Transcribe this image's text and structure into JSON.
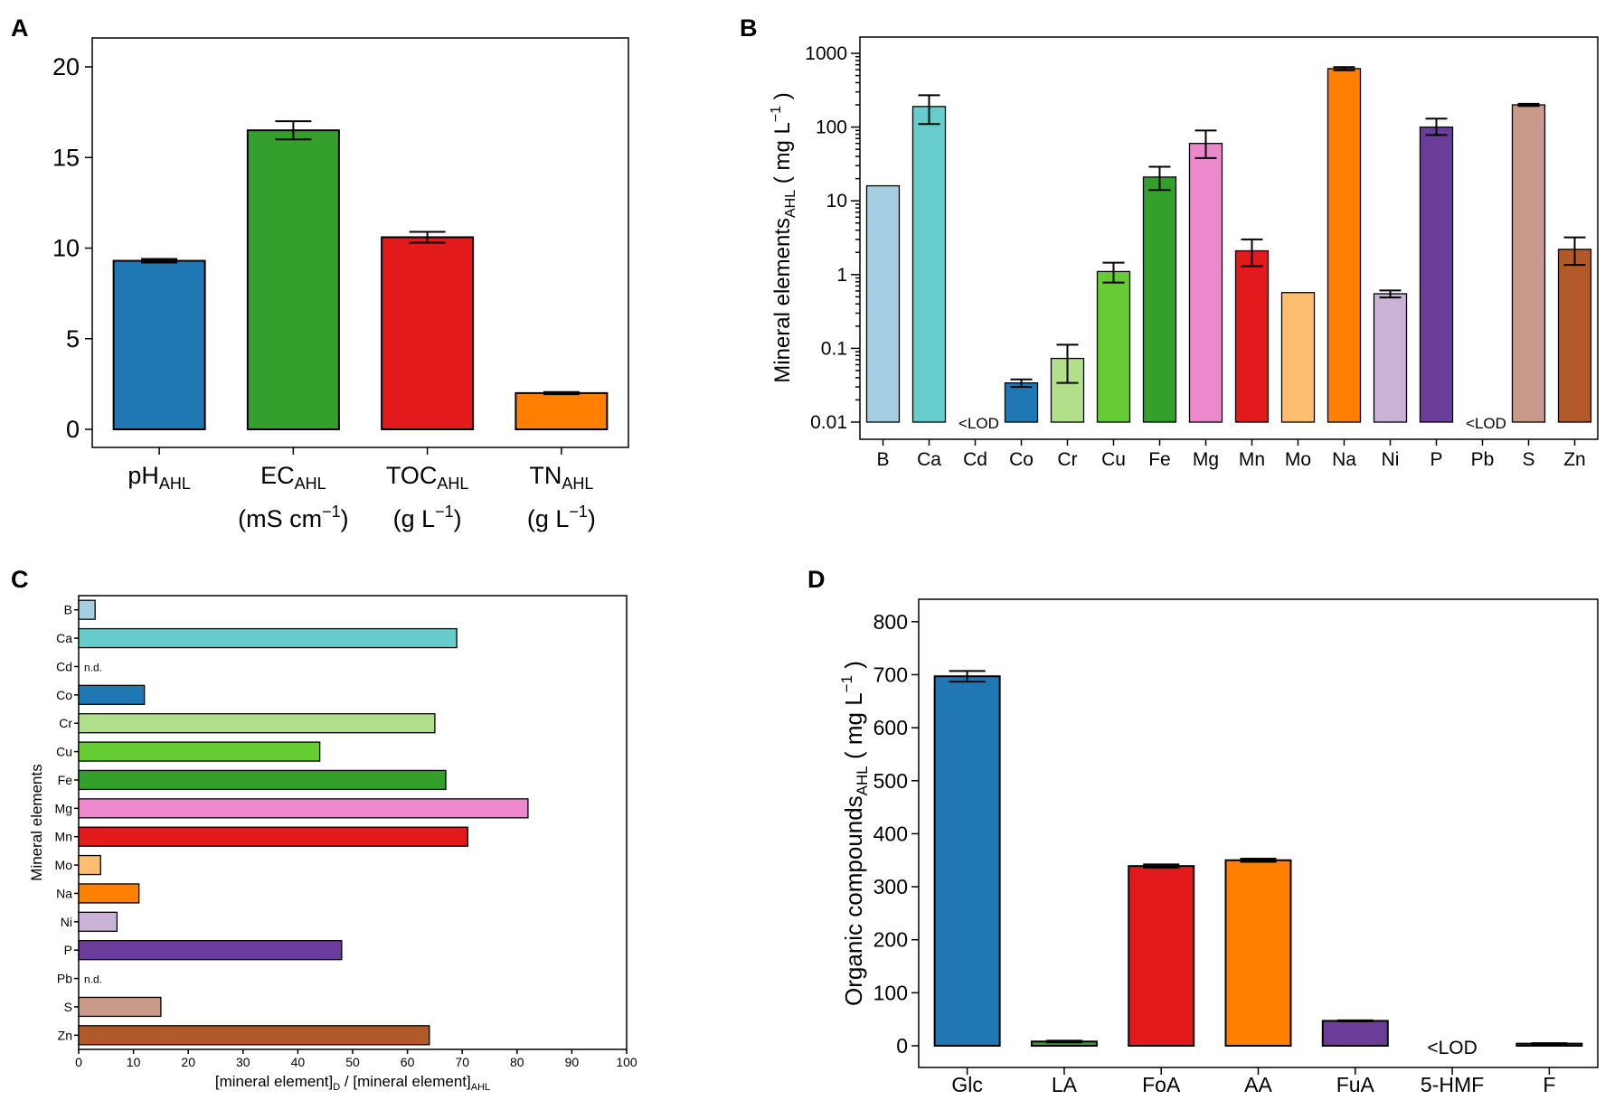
{
  "colors": {
    "blue": "#1f78b4",
    "green": "#33a02c",
    "red": "#e31a1c",
    "orange": "#ff7f00",
    "light_blue": "#a6cee3",
    "teal": "#66cdcc",
    "light_green": "#b2df8a",
    "lime": "#66cc33",
    "pink": "#ee88cc",
    "light_orange": "#fdbf6f",
    "lavender": "#cab2d6",
    "purple": "#6a3d9a",
    "tan": "#c9998a",
    "brown": "#b15928"
  },
  "panels": {
    "a": {
      "letter": "A"
    },
    "b": {
      "letter": "B",
      "ylabel_main": "Mineral  elements",
      "ylabel_sub": "AHL",
      "ylabel_unit": "( mg L",
      "ylabel_exp": "−1",
      "ylabel_close": ")"
    },
    "c": {
      "letter": "C"
    },
    "d": {
      "letter": "D",
      "ylabel_main": "Organic  compounds",
      "ylabel_sub": "AHL",
      "ylabel_unit": "( mg L",
      "ylabel_exp": "−1",
      "ylabel_close": ")"
    }
  },
  "chart_data": [
    {
      "id": "A",
      "type": "bar",
      "title": "",
      "categories": [
        {
          "main": "pH",
          "sub": "AHL",
          "unit": "",
          "exp": "",
          "close": ""
        },
        {
          "main": "EC",
          "sub": "AHL",
          "unit": "(mS cm",
          "exp": "−1",
          "close": ")"
        },
        {
          "main": "TOC",
          "sub": "AHL",
          "unit": "(g L",
          "exp": "−1",
          "close": ")"
        },
        {
          "main": "TN",
          "sub": "AHL",
          "unit": "(g L",
          "exp": "−1",
          "close": ")"
        }
      ],
      "values": [
        9.3,
        16.5,
        10.6,
        2.0
      ],
      "errors": [
        0.1,
        0.5,
        0.3,
        0.06
      ],
      "colors": [
        "#1f78b4",
        "#33a02c",
        "#e31a1c",
        "#ff7f00"
      ],
      "ylim": [
        0,
        21
      ],
      "yticks": [
        0,
        5,
        10,
        15,
        20
      ],
      "xlabel": "",
      "ylabel": ""
    },
    {
      "id": "B",
      "type": "bar",
      "yscale": "log",
      "categories": [
        "B",
        "Ca",
        "Cd",
        "Co",
        "Cr",
        "Cu",
        "Fe",
        "Mg",
        "Mn",
        "Mo",
        "Na",
        "Ni",
        "P",
        "Pb",
        "S",
        "Zn"
      ],
      "values": [
        16,
        190,
        null,
        0.034,
        0.073,
        1.1,
        21,
        60,
        2.1,
        0.57,
        620,
        0.55,
        100,
        null,
        200,
        2.2
      ],
      "err_low": [
        null,
        110,
        null,
        0.03,
        0.034,
        0.78,
        14,
        38,
        1.3,
        null,
        590,
        0.49,
        78,
        null,
        193,
        1.35
      ],
      "err_high": [
        null,
        270,
        null,
        0.038,
        0.112,
        1.45,
        29,
        90,
        3.0,
        null,
        650,
        0.61,
        130,
        null,
        207,
        3.2
      ],
      "labels": [
        null,
        null,
        "<LOD",
        null,
        null,
        null,
        null,
        null,
        null,
        null,
        null,
        null,
        null,
        "<LOD",
        null,
        null
      ],
      "colors": [
        "#a6cee3",
        "#66cdcc",
        "#ffffff",
        "#1f78b4",
        "#b2df8a",
        "#66cc33",
        "#33a02c",
        "#ee88cc",
        "#e31a1c",
        "#fdbf6f",
        "#ff7f00",
        "#cab2d6",
        "#6a3d9a",
        "#ffffff",
        "#c9998a",
        "#b15928"
      ],
      "ylim": [
        0.01,
        1000
      ],
      "ytick_values": [
        0.01,
        0.1,
        1,
        10,
        100,
        1000
      ],
      "ytick_labels": [
        "0.01",
        "0.1",
        "1",
        "10",
        "100",
        "1000"
      ],
      "xlabel": "",
      "ylabel": "Mineral elementsAHL ( mg L−1 )"
    },
    {
      "id": "C",
      "type": "bar",
      "orientation": "horizontal",
      "categories": [
        "B",
        "Ca",
        "Cd",
        "Co",
        "Cr",
        "Cu",
        "Fe",
        "Mg",
        "Mn",
        "Mo",
        "Na",
        "Ni",
        "P",
        "Pb",
        "S",
        "Zn"
      ],
      "values": [
        3,
        69,
        null,
        12,
        65,
        44,
        67,
        82,
        71,
        4,
        11,
        7,
        48,
        null,
        15,
        64
      ],
      "labels": [
        null,
        null,
        "n.d.",
        null,
        null,
        null,
        null,
        null,
        null,
        null,
        null,
        null,
        null,
        "n.d.",
        null,
        null
      ],
      "colors": [
        "#a6cee3",
        "#66cdcc",
        "#ffffff",
        "#1f78b4",
        "#b2df8a",
        "#66cc33",
        "#33a02c",
        "#ee88cc",
        "#e31a1c",
        "#fdbf6f",
        "#ff7f00",
        "#cab2d6",
        "#6a3d9a",
        "#ffffff",
        "#c9998a",
        "#b15928"
      ],
      "xlim": [
        0,
        100
      ],
      "xticks": [
        0,
        10,
        20,
        30,
        40,
        50,
        60,
        70,
        80,
        90,
        100
      ],
      "xlabel_main": "[mineral element]",
      "xlabel_sub1": "D",
      "xlabel_mid": " / [mineral element]",
      "xlabel_sub2": "AHL",
      "ylabel": "Mineral elements"
    },
    {
      "id": "D",
      "type": "bar",
      "categories": [
        "Glc",
        "LA",
        "FoA",
        "AA",
        "FuA",
        "5-HMF",
        "F"
      ],
      "values": [
        697,
        8,
        339,
        350,
        47,
        null,
        4
      ],
      "errors": [
        10,
        1.5,
        3,
        3,
        1,
        null,
        1
      ],
      "labels": [
        null,
        null,
        null,
        null,
        null,
        "<LOD",
        null
      ],
      "colors": [
        "#1f78b4",
        "#33a02c",
        "#e31a1c",
        "#ff7f00",
        "#6a3d9a",
        "#ffffff",
        "#b15928"
      ],
      "ylim": [
        0,
        820
      ],
      "yticks": [
        0,
        100,
        200,
        300,
        400,
        500,
        600,
        700,
        800
      ],
      "xlabel": "",
      "ylabel": "Organic compoundsAHL ( mg L−1 )"
    }
  ]
}
